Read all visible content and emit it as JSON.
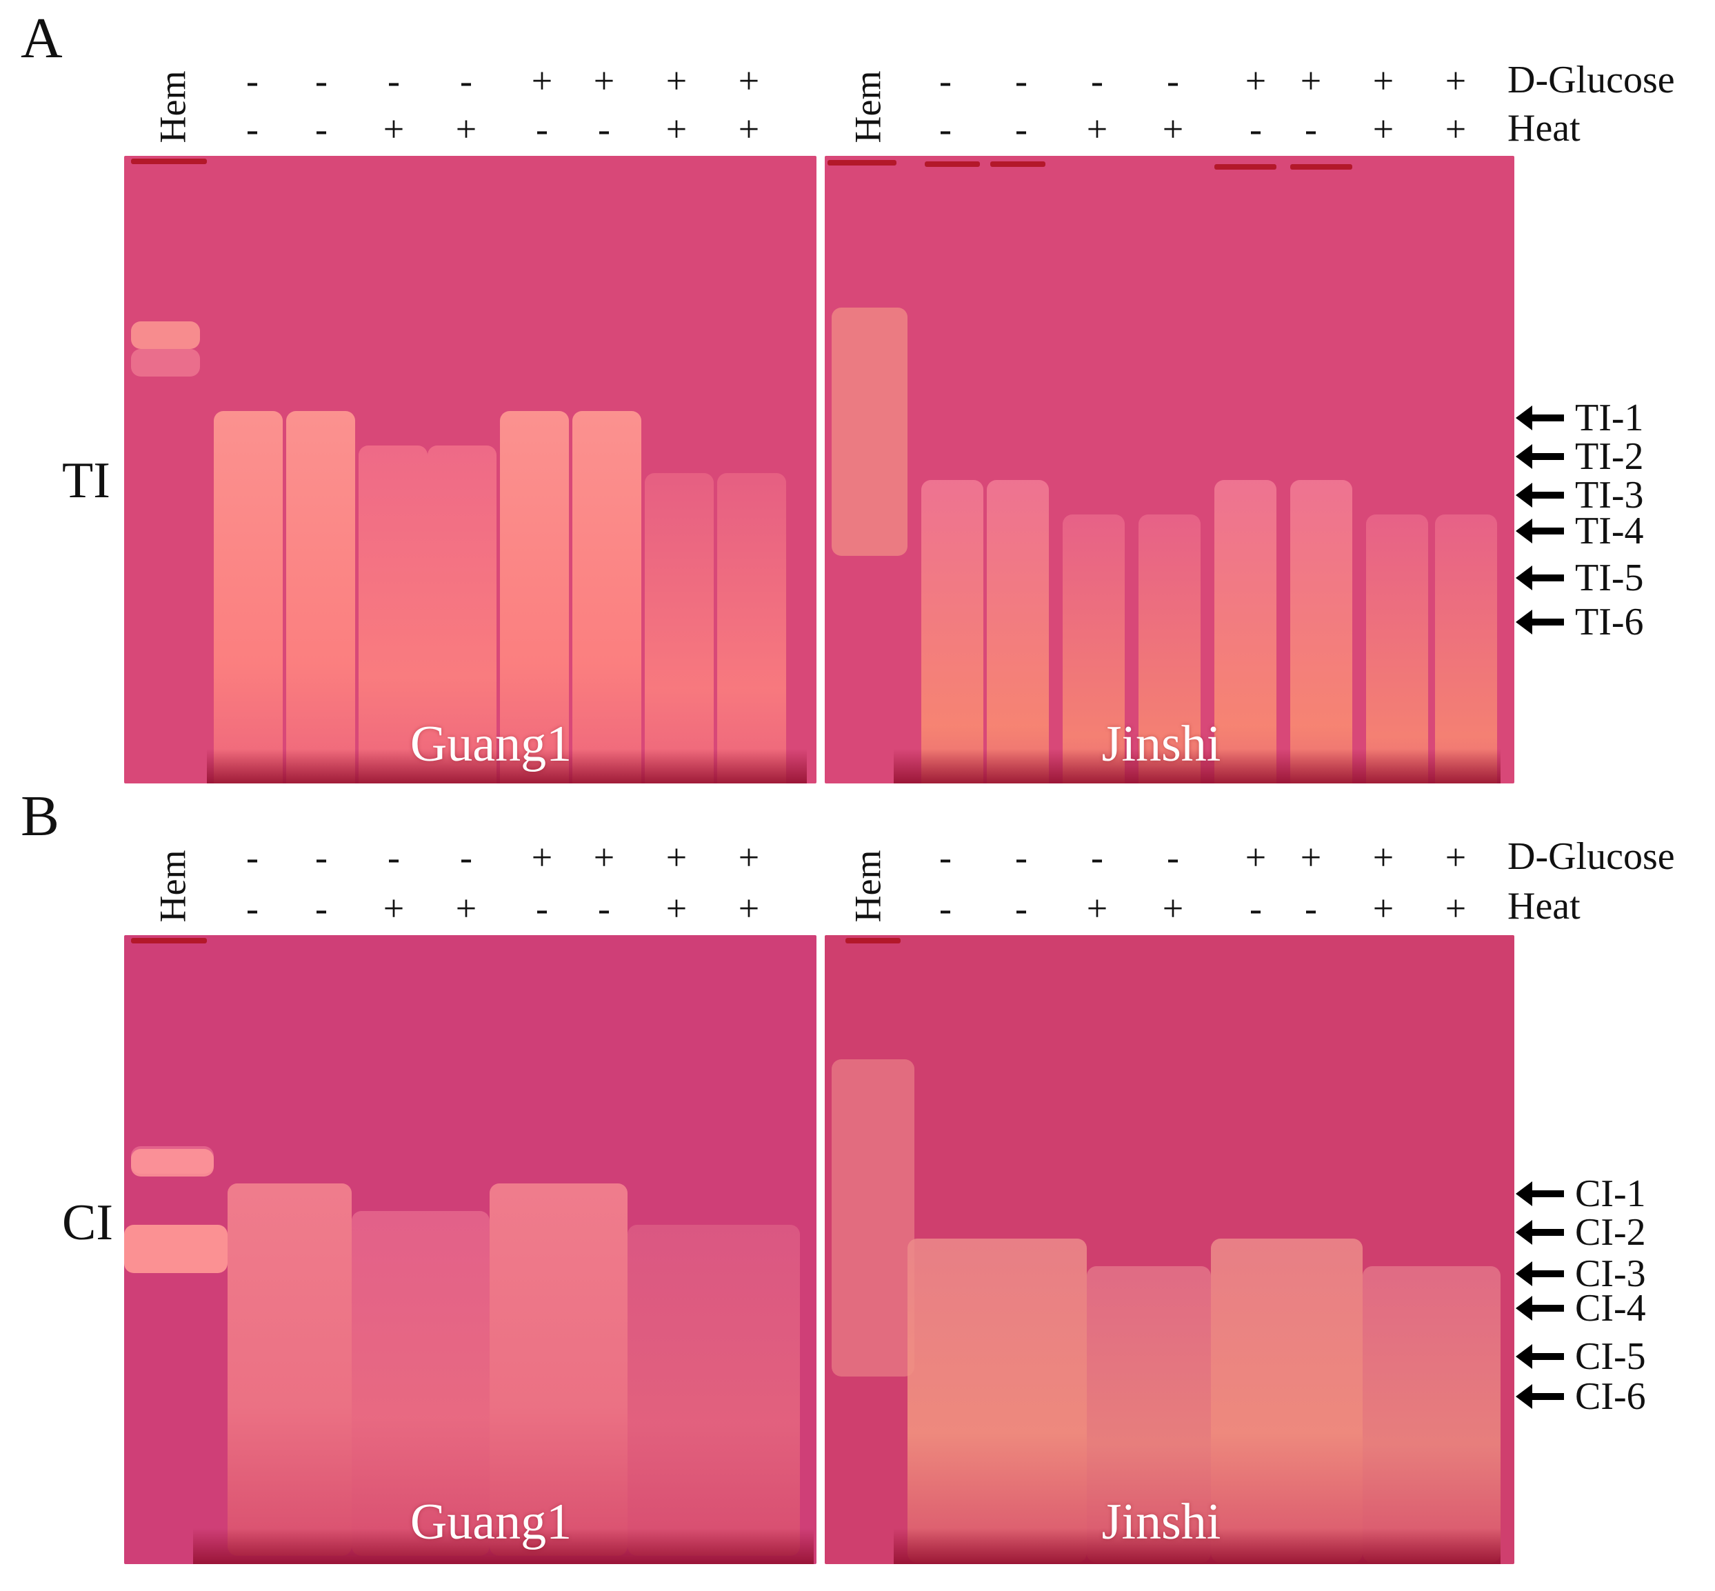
{
  "panels": [
    {
      "letter": "A",
      "side_label": "TI",
      "row_labels": [
        "D-Glucose",
        "Heat"
      ],
      "hem_label": "Hem",
      "glucose_signs": [
        "-",
        "-",
        "-",
        "-",
        "+",
        "+",
        "+",
        "+"
      ],
      "heat_signs": [
        "-",
        "-",
        "+",
        "+",
        "-",
        "-",
        "+",
        "+"
      ],
      "gels": [
        "Guang1",
        "Jinshi"
      ],
      "bands": [
        "TI-1",
        "TI-2",
        "TI-3",
        "TI-4",
        "TI-5",
        "TI-6"
      ]
    },
    {
      "letter": "B",
      "side_label": "CI",
      "row_labels": [
        "D-Glucose",
        "Heat"
      ],
      "hem_label": "Hem",
      "glucose_signs": [
        "-",
        "-",
        "-",
        "-",
        "+",
        "+",
        "+",
        "+"
      ],
      "heat_signs": [
        "-",
        "-",
        "+",
        "+",
        "-",
        "-",
        "+",
        "+"
      ],
      "gels": [
        "Guang1",
        "Jinshi"
      ],
      "bands": [
        "CI-1",
        "CI-2",
        "CI-3",
        "CI-4",
        "CI-5",
        "CI-6"
      ]
    }
  ],
  "colors": {
    "gel": "#d84878",
    "gel_dark": "#c23566",
    "band": "#ff8c8a",
    "stripe": "#b3182a"
  }
}
